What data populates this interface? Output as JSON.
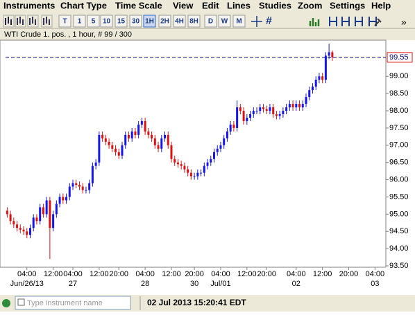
{
  "menu": [
    "Instruments",
    "Chart Type",
    "Time Scale",
    "View",
    "Edit",
    "Lines",
    "Studies",
    "Zoom",
    "Settings",
    "Help"
  ],
  "toolbar": {
    "timescales": [
      "T",
      "1",
      "5",
      "10",
      "15",
      "30",
      "1H",
      "2H",
      "4H",
      "8H",
      "D",
      "W",
      "M"
    ],
    "active": "1H"
  },
  "chart_data": {
    "type": "candlestick",
    "title": "WTI Crude 1. pos. , 1 hour, # 99 / 300",
    "up_color": "#1515f0",
    "down_color": "#e01010",
    "open": [
      95.1,
      95.0,
      94.8,
      94.7,
      94.6,
      94.55,
      94.5,
      94.4,
      94.6,
      94.9,
      94.8,
      95.2,
      95.0,
      95.4,
      94.6,
      95.0,
      95.3,
      95.5,
      95.4,
      95.5,
      95.8,
      95.9,
      95.85,
      95.8,
      95.7,
      95.7,
      95.9,
      96.4,
      96.5,
      97.3,
      97.2,
      97.1,
      97.0,
      96.9,
      96.8,
      96.7,
      97.0,
      97.3,
      97.2,
      97.4,
      97.3,
      97.6,
      97.7,
      97.4,
      97.3,
      97.2,
      97.0,
      96.9,
      97.2,
      97.3,
      97.0,
      96.6,
      96.5,
      96.45,
      96.4,
      96.3,
      96.2,
      96.1,
      96.1,
      96.2,
      96.2,
      96.4,
      96.5,
      96.6,
      96.8,
      96.9,
      97.0,
      97.2,
      97.4,
      97.6,
      97.5,
      98.1,
      98.0,
      97.7,
      97.8,
      97.9,
      98.0,
      98.0,
      98.1,
      98.05,
      98.0,
      98.1,
      97.9,
      97.85,
      97.9,
      98.0,
      98.1,
      98.2,
      98.1,
      98.2,
      98.1,
      98.2,
      98.4,
      98.6,
      98.7,
      98.9,
      99.0,
      98.9,
      99.6,
      99.7
    ],
    "high": [
      95.2,
      95.1,
      94.9,
      94.8,
      94.7,
      94.65,
      94.6,
      94.7,
      95.0,
      95.0,
      95.3,
      95.3,
      95.5,
      95.5,
      95.1,
      95.4,
      95.6,
      95.6,
      95.6,
      95.9,
      96.0,
      96.0,
      95.95,
      95.9,
      95.8,
      96.0,
      96.5,
      96.6,
      97.4,
      97.4,
      97.3,
      97.2,
      97.1,
      97.0,
      96.9,
      97.1,
      97.4,
      97.4,
      97.5,
      97.5,
      97.7,
      97.8,
      97.8,
      97.5,
      97.4,
      97.3,
      97.1,
      97.3,
      97.4,
      97.4,
      97.1,
      96.7,
      96.6,
      96.55,
      96.5,
      96.4,
      96.3,
      96.2,
      96.3,
      96.3,
      96.5,
      96.6,
      96.7,
      96.9,
      97.0,
      97.1,
      97.3,
      97.5,
      97.7,
      97.7,
      98.3,
      98.2,
      98.1,
      97.9,
      98.0,
      98.1,
      98.1,
      98.2,
      98.2,
      98.15,
      98.2,
      98.2,
      98.0,
      98.0,
      98.1,
      98.2,
      98.3,
      98.3,
      98.3,
      98.3,
      98.3,
      98.5,
      98.7,
      98.8,
      99.0,
      99.1,
      99.1,
      99.7,
      99.95,
      99.75
    ],
    "low": [
      94.9,
      94.7,
      94.6,
      94.5,
      94.45,
      94.4,
      94.3,
      94.3,
      94.5,
      94.7,
      94.7,
      94.9,
      94.9,
      93.7,
      94.5,
      94.9,
      95.2,
      95.3,
      95.3,
      95.4,
      95.7,
      95.75,
      95.7,
      95.6,
      95.6,
      95.6,
      95.8,
      96.3,
      96.4,
      97.1,
      97.0,
      96.9,
      96.8,
      96.7,
      96.6,
      96.6,
      96.9,
      97.1,
      97.1,
      97.2,
      97.2,
      97.5,
      97.3,
      97.2,
      97.1,
      96.9,
      96.8,
      96.8,
      97.1,
      96.9,
      96.5,
      96.4,
      96.35,
      96.3,
      96.2,
      96.1,
      96.0,
      96.0,
      96.0,
      96.1,
      96.1,
      96.3,
      96.4,
      96.5,
      96.7,
      96.8,
      96.9,
      97.1,
      97.3,
      97.4,
      97.4,
      97.9,
      97.6,
      97.6,
      97.7,
      97.8,
      97.9,
      97.9,
      97.95,
      97.9,
      97.9,
      97.8,
      97.75,
      97.75,
      97.8,
      97.9,
      98.0,
      98.0,
      98.0,
      98.0,
      98.0,
      98.1,
      98.3,
      98.5,
      98.6,
      98.8,
      98.8,
      98.8,
      99.5,
      99.45
    ],
    "close": [
      95.0,
      94.8,
      94.7,
      94.6,
      94.55,
      94.5,
      94.4,
      94.6,
      94.9,
      94.8,
      95.2,
      95.0,
      95.4,
      94.6,
      95.0,
      95.3,
      95.5,
      95.4,
      95.5,
      95.8,
      95.9,
      95.85,
      95.8,
      95.7,
      95.7,
      95.9,
      96.4,
      96.5,
      97.3,
      97.2,
      97.1,
      97.0,
      96.9,
      96.8,
      96.7,
      97.0,
      97.3,
      97.2,
      97.4,
      97.3,
      97.6,
      97.7,
      97.4,
      97.3,
      97.2,
      97.0,
      96.9,
      97.2,
      97.3,
      97.0,
      96.6,
      96.5,
      96.45,
      96.4,
      96.3,
      96.2,
      96.1,
      96.1,
      96.2,
      96.2,
      96.4,
      96.5,
      96.6,
      96.8,
      96.9,
      97.0,
      97.2,
      97.4,
      97.6,
      97.5,
      98.1,
      98.0,
      97.7,
      97.8,
      97.9,
      98.0,
      98.0,
      98.1,
      98.05,
      98.0,
      98.1,
      97.9,
      97.85,
      97.9,
      98.0,
      98.1,
      98.2,
      98.1,
      98.2,
      98.1,
      98.2,
      98.4,
      98.6,
      98.7,
      98.9,
      99.0,
      98.9,
      99.6,
      99.7,
      99.55
    ],
    "last_price": {
      "value": 99.55,
      "label": "99.55"
    },
    "xlim": [
      -0.5,
      115.3
    ],
    "ylim": [
      93.46,
      100.05
    ],
    "yticks": [
      {
        "value": 93.5,
        "label": "93.50"
      },
      {
        "value": 94,
        "label": "94.00"
      },
      {
        "value": 94.5,
        "label": "94.50"
      },
      {
        "value": 95,
        "label": "95.00"
      },
      {
        "value": 95.5,
        "label": "95.50"
      },
      {
        "value": 96,
        "label": "96.00"
      },
      {
        "value": 96.5,
        "label": "96.50"
      },
      {
        "value": 97,
        "label": "97.00"
      },
      {
        "value": 97.5,
        "label": "97.50"
      },
      {
        "value": 98,
        "label": "98.00"
      },
      {
        "value": 98.5,
        "label": "98.50"
      },
      {
        "value": 99,
        "label": "99.00"
      }
    ],
    "xticks": [
      {
        "value": 6,
        "label": "04:00"
      },
      {
        "value": 14,
        "label": "12:00"
      },
      {
        "value": 20,
        "label": "04:00"
      },
      {
        "value": 28,
        "label": "12:00"
      },
      {
        "value": 34,
        "label": "20:00"
      },
      {
        "value": 42,
        "label": "04:00"
      },
      {
        "value": 50,
        "label": "12:00"
      },
      {
        "value": 57,
        "label": "20:00"
      },
      {
        "value": 65,
        "label": "04:00"
      },
      {
        "value": 73,
        "label": "12:00"
      },
      {
        "value": 79,
        "label": "20:00"
      },
      {
        "value": 88,
        "label": "04:00"
      },
      {
        "value": 96,
        "label": "12:00"
      },
      {
        "value": 104,
        "label": "20:00"
      },
      {
        "value": 112,
        "label": "04:00"
      }
    ],
    "date_ticks": [
      {
        "value": 6,
        "label": "Jun/26/13"
      },
      {
        "value": 20,
        "label": "27"
      },
      {
        "value": 42,
        "label": "28"
      },
      {
        "value": 57,
        "label": "30"
      },
      {
        "value": 65,
        "label": "Jul/01"
      },
      {
        "value": 88,
        "label": "02"
      },
      {
        "value": 112,
        "label": "03"
      }
    ]
  },
  "status": {
    "placeholder": "Type instrument name",
    "datetime": "02 Jul 2013 15:20:41 EDT"
  }
}
